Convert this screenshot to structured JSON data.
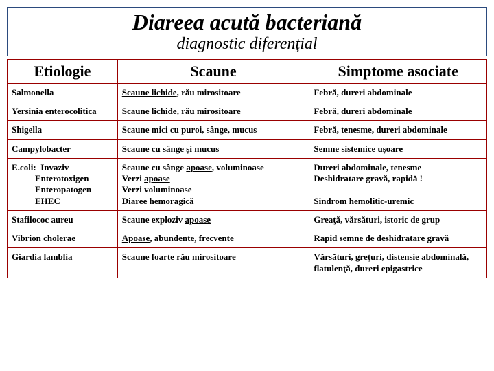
{
  "title": "Diareea acută bacteriană",
  "subtitle": "diagnostic diferenţial",
  "border_color": "#9a0000",
  "title_border_color": "#2b4a7d",
  "headers": {
    "col1": "Etiologie",
    "col2": "Scaune",
    "col3": "Simptome asociate"
  },
  "rows": [
    {
      "etio_html": "Salmonella",
      "scaune_html": "<span class=\"u\">Scaune lichide</span>, rău mirositoare",
      "simpt_html": "Febră, dureri abdominale"
    },
    {
      "etio_html": "Yersinia enterocolitica",
      "scaune_html": "<span class=\"u\">Scaune lichide</span>, rău mirositoare",
      "simpt_html": "Febră, dureri abdominale"
    },
    {
      "etio_html": "Shigella",
      "scaune_html": "Scaune mici cu puroi, sânge, mucus",
      "simpt_html": "Febră, tenesme, dureri abdominale"
    },
    {
      "etio_html": "Campylobacter",
      "scaune_html": "Scaune cu sânge şi mucus",
      "simpt_html": "Semne sistemice uşoare"
    },
    {
      "etio_html": "<span class=\"ecoli-first\">E.coli:&nbsp;&nbsp;Invaziv</span><span class=\"indent\">Enterotoxigen</span><span class=\"indent\">Enteropatogen</span><span class=\"indent\">EHEC</span>",
      "scaune_html": "Scaune cu sânge <span class=\"u\">apoase</span>, voluminoase<br>Verzi <span class=\"u\">apoase </span><br>Verzi voluminoase<br>Diaree hemoragică",
      "simpt_html": "Dureri abdominale, tenesme<br>Deshidratare gravă, rapidă !<br><br>Sindrom hemolitic-uremic"
    },
    {
      "etio_html": "Stafilococ aureu",
      "scaune_html": "Scaune exploziv <span class=\"u\">apoase</span>",
      "simpt_html": "Greaţă, vărsături, istoric de grup"
    },
    {
      "etio_html": "Vibrion cholerae",
      "scaune_html": "<span class=\"u\">Apoase</span>, abundente, frecvente",
      "simpt_html": "Rapid semne de deshidratare gravă"
    },
    {
      "etio_html": "Giardia lamblia",
      "scaune_html": "Scaune foarte rău mirositoare",
      "simpt_html": "Vărsături, greţuri, distensie abdominală, flatulenţă, dureri epigastrice"
    }
  ]
}
